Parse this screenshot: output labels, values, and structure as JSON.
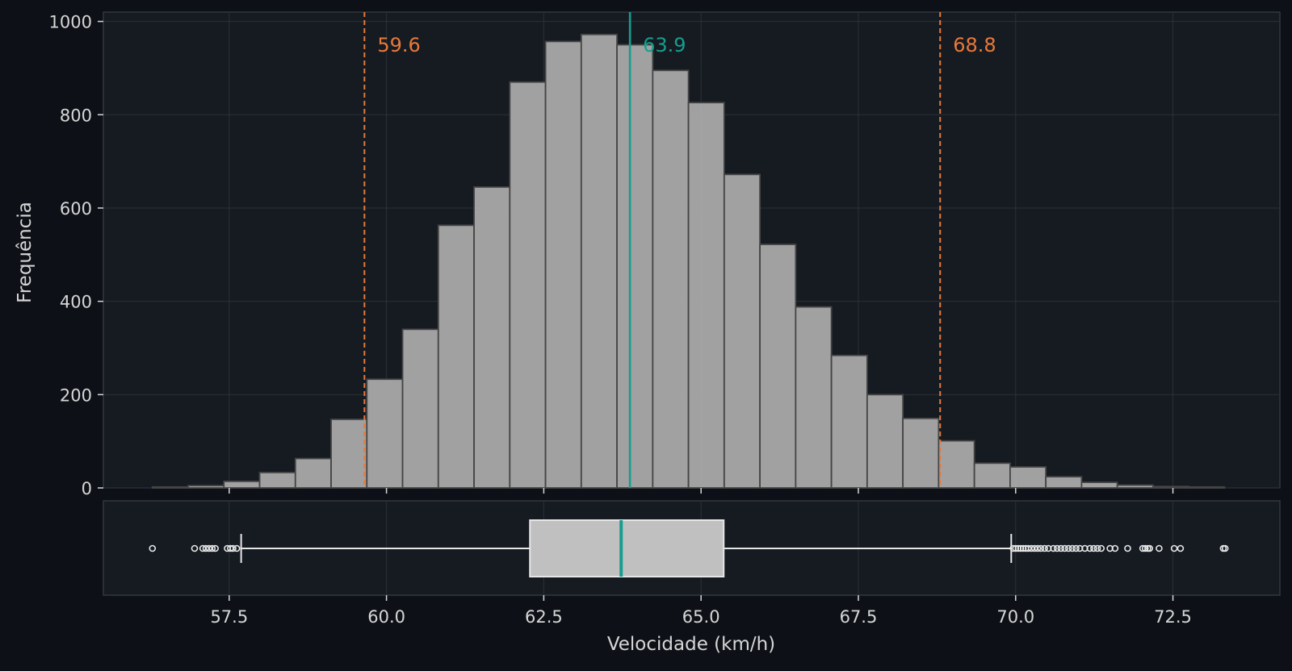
{
  "chart_data": {
    "type": "bar",
    "title": "",
    "xlabel": "Velocidade (km/h)",
    "ylabel": "Frequência",
    "xlim": [
      55.5,
      74.2
    ],
    "ylim": [
      0,
      1020
    ],
    "grid": true,
    "histogram": {
      "bin_width": 0.568,
      "bin_start": 56.28,
      "counts": [
        2,
        5,
        14,
        33,
        63,
        147,
        233,
        340,
        563,
        645,
        870,
        957,
        972,
        950,
        895,
        826,
        672,
        522,
        388,
        284,
        200,
        149,
        101,
        53,
        45,
        24,
        12,
        6,
        3,
        2
      ]
    },
    "yticks": [
      "0",
      "200",
      "400",
      "600",
      "800",
      "1000"
    ],
    "ytick_values": [
      0,
      200,
      400,
      600,
      800,
      1000
    ],
    "xticks": [
      "57.5",
      "60.0",
      "62.5",
      "65.0",
      "67.5",
      "70.0",
      "72.5"
    ],
    "xtick_values": [
      57.5,
      60.0,
      62.5,
      65.0,
      67.5,
      70.0,
      72.5
    ],
    "reference_lines": [
      {
        "value": 59.65,
        "label": "59.6",
        "style": "dashed",
        "color": "#e8793a"
      },
      {
        "value": 63.87,
        "label": "63.9",
        "style": "solid",
        "color": "#159e8e"
      },
      {
        "value": 68.8,
        "label": "68.8",
        "style": "dashed",
        "color": "#e8793a"
      }
    ],
    "boxplot": {
      "q1": 62.28,
      "median": 63.73,
      "q3": 65.36,
      "whisker_low": 57.69,
      "whisker_high": 69.93,
      "outliers": [
        56.28,
        56.95,
        57.08,
        57.13,
        57.18,
        57.23,
        57.28,
        57.47,
        57.52,
        57.56,
        57.62,
        69.96,
        70.0,
        70.04,
        70.08,
        70.12,
        70.16,
        70.2,
        70.25,
        70.3,
        70.35,
        70.4,
        70.46,
        70.52,
        70.6,
        70.66,
        70.72,
        70.78,
        70.84,
        70.9,
        70.96,
        71.02,
        71.1,
        71.18,
        71.24,
        71.3,
        71.36,
        71.5,
        71.58,
        71.78,
        72.02,
        72.06,
        72.1,
        72.13,
        72.28,
        72.52,
        72.62,
        73.3,
        73.33
      ]
    },
    "colors": {
      "background": "#0d1117",
      "panel": "#161b22",
      "bar_fill": "#a9a9a9",
      "bar_edge": "#454545",
      "text": "#d6d6d6",
      "orange": "#e8793a",
      "teal": "#159e8e",
      "box_fill": "#c0c0c0",
      "whisker": "#e6e6e6"
    }
  }
}
